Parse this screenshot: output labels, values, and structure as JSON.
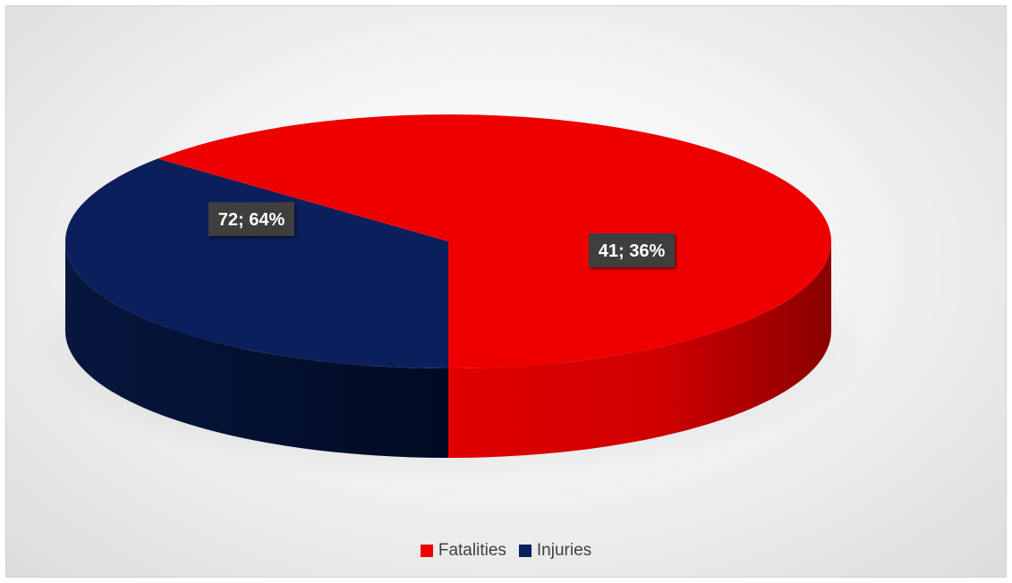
{
  "chart_data": {
    "type": "pie",
    "categories": [
      "Fatalities",
      "Injuries"
    ],
    "values": [
      72,
      41
    ],
    "percentages": [
      64,
      36
    ],
    "colors": [
      "#ee0000",
      "#0b1f5c"
    ],
    "data_labels": [
      "72; 64%",
      "41; 36%"
    ],
    "legend_position": "bottom",
    "style": "3d"
  },
  "legend": {
    "items": [
      {
        "label": "Fatalities",
        "color": "#ee0000"
      },
      {
        "label": "Injuries",
        "color": "#0b1f5c"
      }
    ]
  }
}
